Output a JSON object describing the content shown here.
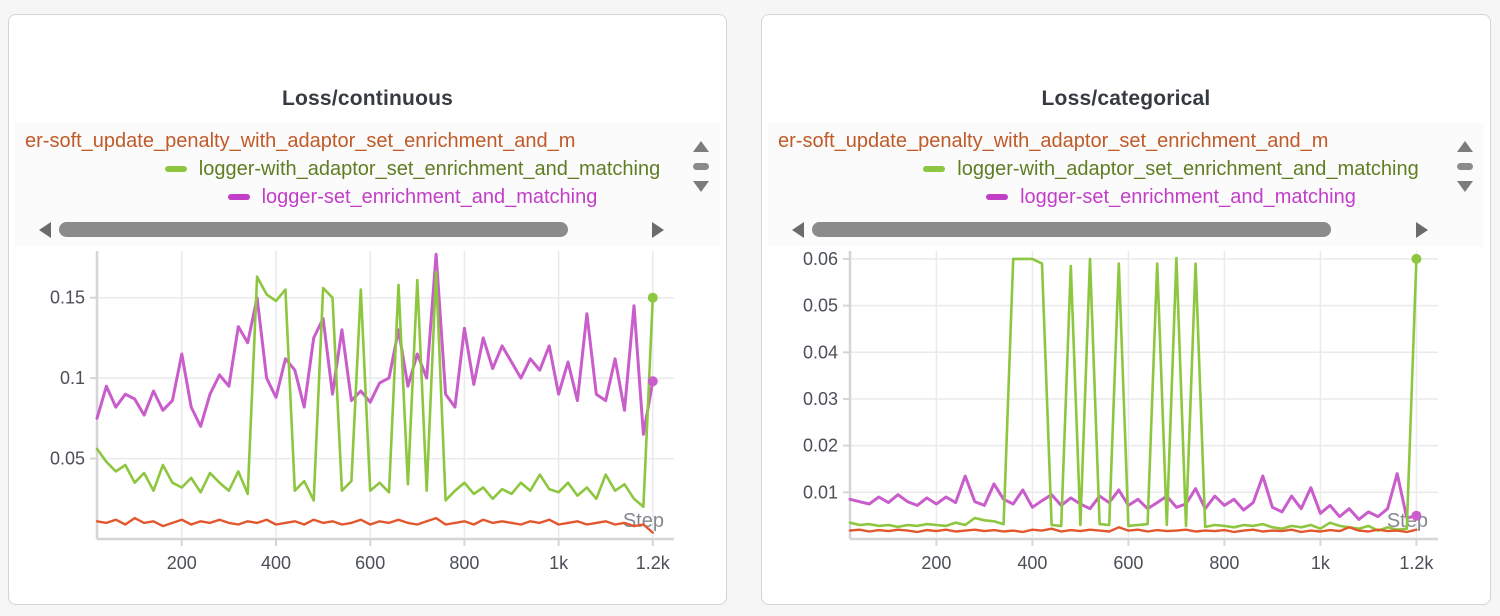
{
  "colors": {
    "orange_line": "#e2582e",
    "green_line": "#8dc63f",
    "magenta_line": "#c95dcb",
    "legend_orange_text": "#c05a28",
    "legend_green_text": "#5f7d22",
    "legend_magenta_text": "#c23ec9",
    "grid": "#eaeaea",
    "axis": "#d5d5d5",
    "tick_text": "#4c4f58",
    "title_text": "#363a41",
    "step_label": "#85888e",
    "scrollbar_thumb": "#8b8b8b"
  },
  "panels": [
    {
      "title": "Loss/continuous",
      "legend": [
        {
          "label": "er-soft_update_penalty_with_adaptor_set_enrichment_and_m"
        },
        {
          "label": "logger-with_adaptor_set_enrichment_and_matching"
        },
        {
          "label": "logger-set_enrichment_and_matching"
        }
      ]
    },
    {
      "title": "Loss/categorical",
      "legend": [
        {
          "label": "er-soft_update_penalty_with_adaptor_set_enrichment_and_m"
        },
        {
          "label": "logger-with_adaptor_set_enrichment_and_matching"
        },
        {
          "label": "logger-set_enrichment_and_matching"
        }
      ]
    }
  ],
  "chart_data": [
    {
      "type": "line",
      "title": "Loss/continuous",
      "xlabel": "Step",
      "ylabel": "",
      "grid": true,
      "legend_position": "top",
      "xlim": [
        20,
        1245
      ],
      "ylim": [
        0,
        0.179
      ],
      "x_ticks": {
        "values": [
          200,
          400,
          600,
          800,
          1000,
          1200
        ],
        "labels": [
          "200",
          "400",
          "600",
          "800",
          "1k",
          "1.2k"
        ]
      },
      "y_ticks": {
        "values": [
          0.05,
          0.1,
          0.15
        ],
        "labels": [
          "0.05",
          "0.1",
          "0.15"
        ]
      },
      "x": [
        20,
        40,
        60,
        80,
        100,
        120,
        140,
        160,
        180,
        200,
        220,
        240,
        260,
        280,
        300,
        320,
        340,
        360,
        380,
        400,
        420,
        440,
        460,
        480,
        500,
        520,
        540,
        560,
        580,
        600,
        620,
        640,
        660,
        680,
        700,
        720,
        740,
        760,
        780,
        800,
        820,
        840,
        860,
        880,
        900,
        920,
        940,
        960,
        980,
        1000,
        1020,
        1040,
        1060,
        1080,
        1100,
        1120,
        1140,
        1160,
        1180,
        1200
      ],
      "series": [
        {
          "name": "er-soft_update_penalty_with_adaptor_set_enrichment_and_m",
          "color": "#e2582e",
          "width": 2.4,
          "end_dot": false,
          "values": [
            0.011,
            0.01,
            0.012,
            0.009,
            0.013,
            0.01,
            0.011,
            0.008,
            0.01,
            0.012,
            0.009,
            0.011,
            0.01,
            0.012,
            0.01,
            0.009,
            0.011,
            0.01,
            0.012,
            0.009,
            0.01,
            0.011,
            0.009,
            0.012,
            0.01,
            0.011,
            0.009,
            0.01,
            0.012,
            0.009,
            0.011,
            0.01,
            0.012,
            0.01,
            0.009,
            0.011,
            0.013,
            0.009,
            0.01,
            0.011,
            0.009,
            0.012,
            0.01,
            0.011,
            0.01,
            0.009,
            0.011,
            0.01,
            0.012,
            0.009,
            0.01,
            0.011,
            0.009,
            0.01,
            0.011,
            0.009,
            0.01,
            0.008,
            0.009,
            0.004
          ]
        },
        {
          "name": "logger-with_adaptor_set_enrichment_and_matching",
          "color": "#8dc63f",
          "width": 2.6,
          "end_dot": true,
          "values": [
            0.056,
            0.048,
            0.042,
            0.046,
            0.035,
            0.041,
            0.03,
            0.046,
            0.035,
            0.032,
            0.038,
            0.029,
            0.041,
            0.035,
            0.03,
            0.042,
            0.028,
            0.163,
            0.152,
            0.148,
            0.155,
            0.03,
            0.036,
            0.024,
            0.156,
            0.15,
            0.03,
            0.036,
            0.155,
            0.03,
            0.035,
            0.029,
            0.158,
            0.034,
            0.161,
            0.03,
            0.166,
            0.024,
            0.03,
            0.035,
            0.028,
            0.032,
            0.025,
            0.031,
            0.028,
            0.035,
            0.03,
            0.04,
            0.031,
            0.029,
            0.035,
            0.027,
            0.032,
            0.025,
            0.04,
            0.03,
            0.034,
            0.025,
            0.02,
            0.15
          ]
        },
        {
          "name": "logger-set_enrichment_and_matching",
          "color": "#c95dcb",
          "width": 3,
          "end_dot": true,
          "values": [
            0.075,
            0.095,
            0.082,
            0.09,
            0.087,
            0.077,
            0.092,
            0.08,
            0.086,
            0.115,
            0.082,
            0.07,
            0.09,
            0.102,
            0.095,
            0.132,
            0.122,
            0.15,
            0.1,
            0.088,
            0.112,
            0.105,
            0.082,
            0.125,
            0.137,
            0.09,
            0.13,
            0.086,
            0.092,
            0.085,
            0.097,
            0.1,
            0.13,
            0.095,
            0.115,
            0.1,
            0.177,
            0.09,
            0.082,
            0.131,
            0.096,
            0.125,
            0.106,
            0.12,
            0.11,
            0.1,
            0.112,
            0.105,
            0.12,
            0.09,
            0.11,
            0.086,
            0.14,
            0.09,
            0.086,
            0.112,
            0.08,
            0.145,
            0.065,
            0.098
          ]
        }
      ]
    },
    {
      "type": "line",
      "title": "Loss/categorical",
      "xlabel": "Step",
      "ylabel": "",
      "grid": true,
      "legend_position": "top",
      "xlim": [
        20,
        1245
      ],
      "ylim": [
        0,
        0.0617
      ],
      "x_ticks": {
        "values": [
          200,
          400,
          600,
          800,
          1000,
          1200
        ],
        "labels": [
          "200",
          "400",
          "600",
          "800",
          "1k",
          "1.2k"
        ]
      },
      "y_ticks": {
        "values": [
          0.01,
          0.02,
          0.03,
          0.04,
          0.05,
          0.06
        ],
        "labels": [
          "0.01",
          "0.02",
          "0.03",
          "0.04",
          "0.05",
          "0.06"
        ]
      },
      "x": [
        20,
        40,
        60,
        80,
        100,
        120,
        140,
        160,
        180,
        200,
        220,
        240,
        260,
        280,
        300,
        320,
        340,
        360,
        380,
        400,
        420,
        440,
        460,
        480,
        500,
        520,
        540,
        560,
        580,
        600,
        620,
        640,
        660,
        680,
        700,
        720,
        740,
        760,
        780,
        800,
        820,
        840,
        860,
        880,
        900,
        920,
        940,
        960,
        980,
        1000,
        1020,
        1040,
        1060,
        1080,
        1100,
        1120,
        1140,
        1160,
        1180,
        1200
      ],
      "series": [
        {
          "name": "er-soft_update_penalty_with_adaptor_set_enrichment_and_m",
          "color": "#e2582e",
          "width": 2.4,
          "end_dot": false,
          "values": [
            0.0018,
            0.002,
            0.0016,
            0.0019,
            0.0017,
            0.002,
            0.0018,
            0.0015,
            0.0019,
            0.0017,
            0.002,
            0.0016,
            0.0018,
            0.002,
            0.0017,
            0.0019,
            0.0016,
            0.0018,
            0.0015,
            0.002,
            0.0018,
            0.0022,
            0.0016,
            0.0019,
            0.0017,
            0.002,
            0.0018,
            0.0016,
            0.0025,
            0.0018,
            0.002,
            0.0016,
            0.0019,
            0.0017,
            0.0018,
            0.002,
            0.0016,
            0.0018,
            0.0017,
            0.0019,
            0.0015,
            0.0018,
            0.002,
            0.0016,
            0.0018,
            0.0017,
            0.002,
            0.0015,
            0.0018,
            0.0016,
            0.0019,
            0.0017,
            0.0025,
            0.0018,
            0.0016,
            0.002,
            0.0017,
            0.0018,
            0.0015,
            0.002
          ]
        },
        {
          "name": "logger-with_adaptor_set_enrichment_and_matching",
          "color": "#8dc63f",
          "width": 2.6,
          "end_dot": true,
          "values": [
            0.0035,
            0.003,
            0.0032,
            0.0028,
            0.003,
            0.0026,
            0.003,
            0.0028,
            0.0032,
            0.003,
            0.0028,
            0.0035,
            0.003,
            0.0045,
            0.004,
            0.0038,
            0.0032,
            0.06,
            0.06,
            0.06,
            0.059,
            0.003,
            0.0028,
            0.0585,
            0.003,
            0.06,
            0.0032,
            0.003,
            0.059,
            0.0028,
            0.003,
            0.0032,
            0.059,
            0.003,
            0.0602,
            0.0028,
            0.059,
            0.0026,
            0.003,
            0.0028,
            0.0025,
            0.003,
            0.0028,
            0.0032,
            0.0025,
            0.0022,
            0.0028,
            0.0025,
            0.003,
            0.0022,
            0.0035,
            0.0028,
            0.0025,
            0.0022,
            0.0028,
            0.0018,
            0.0025,
            0.002,
            0.0022,
            0.06
          ]
        },
        {
          "name": "logger-set_enrichment_and_matching",
          "color": "#c95dcb",
          "width": 3,
          "end_dot": true,
          "values": [
            0.0085,
            0.008,
            0.0075,
            0.009,
            0.0078,
            0.0095,
            0.008,
            0.0072,
            0.0088,
            0.0075,
            0.009,
            0.0078,
            0.0135,
            0.008,
            0.0072,
            0.0118,
            0.0085,
            0.0075,
            0.0105,
            0.0068,
            0.0082,
            0.0095,
            0.0072,
            0.0088,
            0.0075,
            0.0065,
            0.0092,
            0.0078,
            0.0105,
            0.0072,
            0.0085,
            0.0065,
            0.0078,
            0.0092,
            0.0068,
            0.0075,
            0.0108,
            0.0065,
            0.0092,
            0.0072,
            0.0085,
            0.0062,
            0.0078,
            0.0135,
            0.0068,
            0.0058,
            0.0092,
            0.0065,
            0.011,
            0.0055,
            0.0072,
            0.0048,
            0.0065,
            0.0042,
            0.0058,
            0.0048,
            0.0065,
            0.014,
            0.0045,
            0.005
          ]
        }
      ]
    }
  ]
}
